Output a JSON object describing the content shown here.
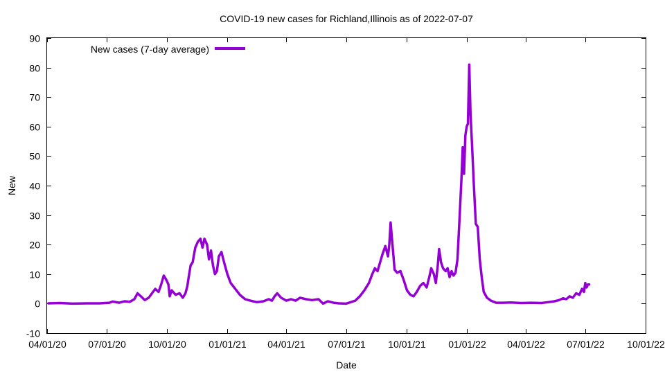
{
  "chart_data": {
    "type": "line",
    "title": "COVID-19 new cases for Richland,Illinois as of 2022-07-07",
    "xlabel": "Date",
    "ylabel": "New",
    "xlim": [
      "2020-04-01",
      "2022-10-01"
    ],
    "ylim": [
      -10,
      90
    ],
    "grid": false,
    "legend_position": "top-left",
    "y_ticks": [
      -10,
      0,
      10,
      20,
      30,
      40,
      50,
      60,
      70,
      80,
      90
    ],
    "x_ticks": [
      {
        "date": "2020-04-01",
        "label": "04/01/20"
      },
      {
        "date": "2020-07-01",
        "label": "07/01/20"
      },
      {
        "date": "2020-10-01",
        "label": "10/01/20"
      },
      {
        "date": "2021-01-01",
        "label": "01/01/21"
      },
      {
        "date": "2021-04-01",
        "label": "04/01/21"
      },
      {
        "date": "2021-07-01",
        "label": "07/01/21"
      },
      {
        "date": "2021-10-01",
        "label": "10/01/21"
      },
      {
        "date": "2022-01-01",
        "label": "01/01/22"
      },
      {
        "date": "2022-04-01",
        "label": "04/01/22"
      },
      {
        "date": "2022-07-01",
        "label": "07/01/22"
      },
      {
        "date": "2022-10-01",
        "label": "10/01/22"
      }
    ],
    "series": [
      {
        "name": "New cases (7-day average)",
        "color": "#9400d3",
        "points": [
          [
            "2020-04-03",
            0.1
          ],
          [
            "2020-04-20",
            0.2
          ],
          [
            "2020-05-10",
            0.0
          ],
          [
            "2020-06-01",
            0.1
          ],
          [
            "2020-06-20",
            0.1
          ],
          [
            "2020-07-05",
            0.3
          ],
          [
            "2020-07-10",
            0.7
          ],
          [
            "2020-07-20",
            0.3
          ],
          [
            "2020-07-28",
            0.8
          ],
          [
            "2020-08-05",
            0.6
          ],
          [
            "2020-08-12",
            1.5
          ],
          [
            "2020-08-17",
            3.5
          ],
          [
            "2020-08-22",
            2.5
          ],
          [
            "2020-08-28",
            1.2
          ],
          [
            "2020-09-03",
            2.0
          ],
          [
            "2020-09-08",
            3.5
          ],
          [
            "2020-09-13",
            5.0
          ],
          [
            "2020-09-18",
            4.0
          ],
          [
            "2020-09-22",
            6.5
          ],
          [
            "2020-09-26",
            9.5
          ],
          [
            "2020-09-30",
            8.0
          ],
          [
            "2020-10-03",
            6.5
          ],
          [
            "2020-10-05",
            2.5
          ],
          [
            "2020-10-08",
            4.5
          ],
          [
            "2020-10-14",
            3.0
          ],
          [
            "2020-10-20",
            3.5
          ],
          [
            "2020-10-25",
            2.0
          ],
          [
            "2020-10-29",
            3.5
          ],
          [
            "2020-11-01",
            6.0
          ],
          [
            "2020-11-03",
            9.0
          ],
          [
            "2020-11-06",
            13.0
          ],
          [
            "2020-11-09",
            14.0
          ],
          [
            "2020-11-13",
            19.0
          ],
          [
            "2020-11-17",
            21.0
          ],
          [
            "2020-11-21",
            22.0
          ],
          [
            "2020-11-24",
            19.0
          ],
          [
            "2020-11-27",
            22.0
          ],
          [
            "2020-12-01",
            20.0
          ],
          [
            "2020-12-04",
            15.0
          ],
          [
            "2020-12-07",
            18.0
          ],
          [
            "2020-12-10",
            13.0
          ],
          [
            "2020-12-13",
            10.0
          ],
          [
            "2020-12-16",
            11.0
          ],
          [
            "2020-12-19",
            16.0
          ],
          [
            "2020-12-23",
            17.5
          ],
          [
            "2020-12-27",
            14.0
          ],
          [
            "2021-01-01",
            10.0
          ],
          [
            "2021-01-06",
            7.0
          ],
          [
            "2021-01-13",
            5.0
          ],
          [
            "2021-01-20",
            3.0
          ],
          [
            "2021-01-28",
            1.5
          ],
          [
            "2021-02-05",
            1.0
          ],
          [
            "2021-02-15",
            0.5
          ],
          [
            "2021-02-25",
            0.8
          ],
          [
            "2021-03-05",
            1.5
          ],
          [
            "2021-03-10",
            1.0
          ],
          [
            "2021-03-14",
            2.5
          ],
          [
            "2021-03-18",
            3.5
          ],
          [
            "2021-03-24",
            2.0
          ],
          [
            "2021-04-01",
            1.0
          ],
          [
            "2021-04-08",
            1.5
          ],
          [
            "2021-04-15",
            1.0
          ],
          [
            "2021-04-22",
            2.0
          ],
          [
            "2021-05-01",
            1.5
          ],
          [
            "2021-05-10",
            1.2
          ],
          [
            "2021-05-20",
            1.5
          ],
          [
            "2021-05-27",
            0.0
          ],
          [
            "2021-06-03",
            0.8
          ],
          [
            "2021-06-12",
            0.3
          ],
          [
            "2021-06-20",
            0.1
          ],
          [
            "2021-07-01",
            0.0
          ],
          [
            "2021-07-08",
            0.5
          ],
          [
            "2021-07-15",
            1.0
          ],
          [
            "2021-07-22",
            2.5
          ],
          [
            "2021-07-29",
            4.5
          ],
          [
            "2021-08-05",
            7.0
          ],
          [
            "2021-08-10",
            10.0
          ],
          [
            "2021-08-14",
            12.0
          ],
          [
            "2021-08-18",
            11.0
          ],
          [
            "2021-08-22",
            14.0
          ],
          [
            "2021-08-26",
            17.0
          ],
          [
            "2021-08-30",
            19.5
          ],
          [
            "2021-09-03",
            16.0
          ],
          [
            "2021-09-05",
            20.0
          ],
          [
            "2021-09-07",
            27.5
          ],
          [
            "2021-09-09",
            22.0
          ],
          [
            "2021-09-11",
            17.0
          ],
          [
            "2021-09-13",
            11.5
          ],
          [
            "2021-09-17",
            10.5
          ],
          [
            "2021-09-22",
            11.0
          ],
          [
            "2021-09-27",
            8.0
          ],
          [
            "2021-10-02",
            4.5
          ],
          [
            "2021-10-07",
            3.0
          ],
          [
            "2021-10-12",
            2.5
          ],
          [
            "2021-10-17",
            4.0
          ],
          [
            "2021-10-22",
            6.0
          ],
          [
            "2021-10-27",
            7.0
          ],
          [
            "2021-11-01",
            5.5
          ],
          [
            "2021-11-05",
            9.0
          ],
          [
            "2021-11-08",
            12.0
          ],
          [
            "2021-11-12",
            10.0
          ],
          [
            "2021-11-15",
            7.0
          ],
          [
            "2021-11-18",
            13.0
          ],
          [
            "2021-11-20",
            18.5
          ],
          [
            "2021-11-23",
            14.0
          ],
          [
            "2021-11-26",
            12.0
          ],
          [
            "2021-11-30",
            11.0
          ],
          [
            "2021-12-03",
            12.0
          ],
          [
            "2021-12-06",
            9.0
          ],
          [
            "2021-12-09",
            11.0
          ],
          [
            "2021-12-12",
            9.5
          ],
          [
            "2021-12-15",
            10.5
          ],
          [
            "2021-12-18",
            15.0
          ],
          [
            "2021-12-21",
            28.0
          ],
          [
            "2021-12-24",
            42.0
          ],
          [
            "2021-12-26",
            53.0
          ],
          [
            "2021-12-28",
            44.0
          ],
          [
            "2021-12-30",
            57.0
          ],
          [
            "2022-01-01",
            60.0
          ],
          [
            "2022-01-03",
            61.0
          ],
          [
            "2022-01-05",
            81.0
          ],
          [
            "2022-01-07",
            64.0
          ],
          [
            "2022-01-09",
            55.0
          ],
          [
            "2022-01-12",
            40.0
          ],
          [
            "2022-01-15",
            27.0
          ],
          [
            "2022-01-18",
            26.0
          ],
          [
            "2022-01-21",
            15.0
          ],
          [
            "2022-01-24",
            9.0
          ],
          [
            "2022-01-27",
            4.0
          ],
          [
            "2022-02-01",
            2.0
          ],
          [
            "2022-02-07",
            1.0
          ],
          [
            "2022-02-15",
            0.3
          ],
          [
            "2022-02-25",
            0.3
          ],
          [
            "2022-03-10",
            0.4
          ],
          [
            "2022-03-25",
            0.2
          ],
          [
            "2022-04-10",
            0.3
          ],
          [
            "2022-04-25",
            0.2
          ],
          [
            "2022-05-05",
            0.5
          ],
          [
            "2022-05-15",
            0.8
          ],
          [
            "2022-05-22",
            1.2
          ],
          [
            "2022-05-28",
            1.8
          ],
          [
            "2022-06-02",
            1.5
          ],
          [
            "2022-06-07",
            2.5
          ],
          [
            "2022-06-12",
            2.0
          ],
          [
            "2022-06-17",
            3.5
          ],
          [
            "2022-06-22",
            3.0
          ],
          [
            "2022-06-26",
            5.0
          ],
          [
            "2022-06-29",
            4.0
          ],
          [
            "2022-07-01",
            7.0
          ],
          [
            "2022-07-03",
            5.5
          ],
          [
            "2022-07-05",
            6.5
          ],
          [
            "2022-07-07",
            6.5
          ]
        ]
      }
    ]
  }
}
